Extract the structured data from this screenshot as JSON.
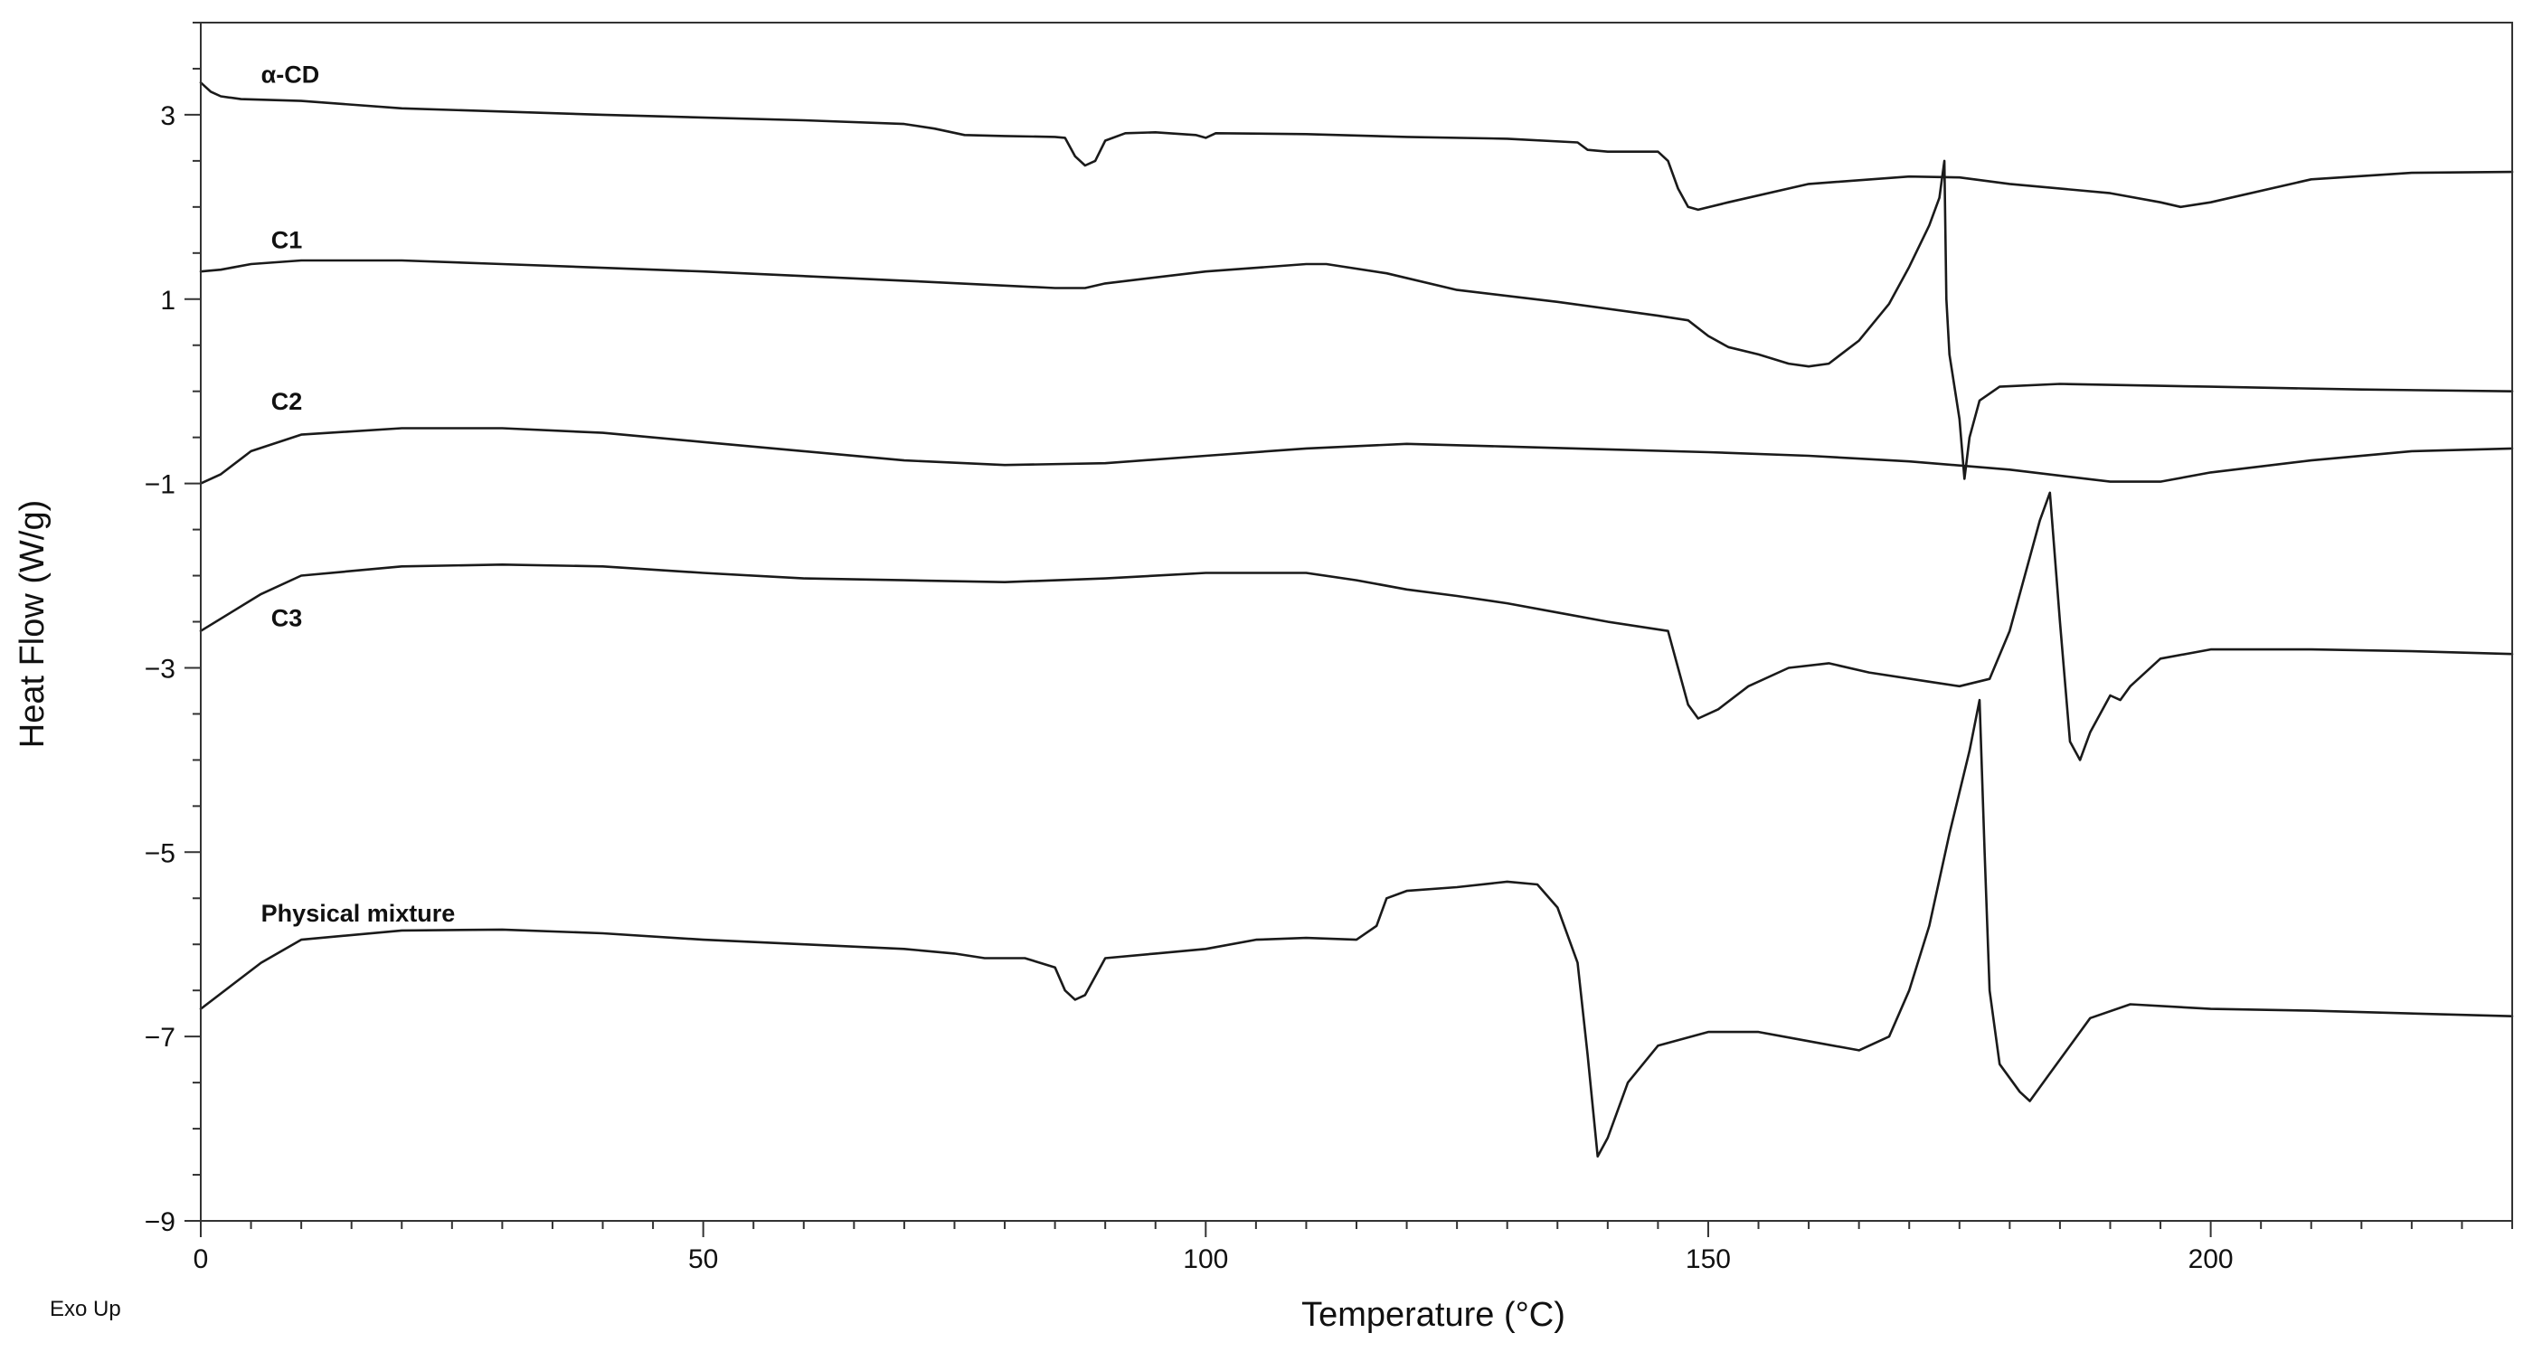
{
  "chart_data": {
    "type": "line",
    "xlabel": "Temperature (°C)",
    "ylabel": "Heat Flow (W/g)",
    "xlim": [
      0,
      230
    ],
    "ylim": [
      -9,
      4
    ],
    "x_major_ticks": [
      0,
      50,
      100,
      150,
      200
    ],
    "y_major_ticks": [
      3,
      1,
      -1,
      -3,
      -5,
      -7,
      -9
    ],
    "x_tick_labels": [
      "0",
      "50",
      "100",
      "150",
      "200"
    ],
    "y_tick_labels": [
      "3",
      "1",
      "−1",
      "−3",
      "−5",
      "−7",
      "−9"
    ],
    "grid": false,
    "legend": "none",
    "annotation": "Exo Up",
    "line_color": "#1a1a1a",
    "series": [
      {
        "name": "α-CD",
        "label_at": [
          6,
          3.35
        ],
        "points": [
          [
            0,
            3.35
          ],
          [
            1,
            3.25
          ],
          [
            2,
            3.2
          ],
          [
            4,
            3.17
          ],
          [
            10,
            3.15
          ],
          [
            20,
            3.07
          ],
          [
            40,
            3.0
          ],
          [
            60,
            2.94
          ],
          [
            70,
            2.9
          ],
          [
            73,
            2.85
          ],
          [
            76,
            2.78
          ],
          [
            80,
            2.77
          ],
          [
            85,
            2.76
          ],
          [
            86,
            2.75
          ],
          [
            87,
            2.55
          ],
          [
            88,
            2.45
          ],
          [
            89,
            2.5
          ],
          [
            90,
            2.72
          ],
          [
            92,
            2.8
          ],
          [
            95,
            2.81
          ],
          [
            99,
            2.78
          ],
          [
            100,
            2.75
          ],
          [
            101,
            2.8
          ],
          [
            110,
            2.79
          ],
          [
            120,
            2.76
          ],
          [
            130,
            2.74
          ],
          [
            137,
            2.7
          ],
          [
            138,
            2.62
          ],
          [
            140,
            2.6
          ],
          [
            145,
            2.6
          ],
          [
            146,
            2.5
          ],
          [
            147,
            2.2
          ],
          [
            148,
            2.0
          ],
          [
            149,
            1.97
          ],
          [
            152,
            2.05
          ],
          [
            160,
            2.25
          ],
          [
            170,
            2.33
          ],
          [
            175,
            2.32
          ],
          [
            180,
            2.25
          ],
          [
            190,
            2.15
          ],
          [
            195,
            2.05
          ],
          [
            197,
            2.0
          ],
          [
            200,
            2.05
          ],
          [
            210,
            2.3
          ],
          [
            220,
            2.37
          ],
          [
            230,
            2.38
          ]
        ]
      },
      {
        "name": "C1",
        "label_at": [
          7,
          1.55
        ],
        "points": [
          [
            0,
            1.3
          ],
          [
            2,
            1.32
          ],
          [
            5,
            1.38
          ],
          [
            10,
            1.42
          ],
          [
            20,
            1.42
          ],
          [
            30,
            1.38
          ],
          [
            50,
            1.3
          ],
          [
            70,
            1.2
          ],
          [
            85,
            1.12
          ],
          [
            88,
            1.12
          ],
          [
            90,
            1.17
          ],
          [
            100,
            1.3
          ],
          [
            110,
            1.38
          ],
          [
            112,
            1.38
          ],
          [
            118,
            1.28
          ],
          [
            125,
            1.1
          ],
          [
            135,
            0.97
          ],
          [
            145,
            0.82
          ],
          [
            148,
            0.77
          ],
          [
            150,
            0.6
          ],
          [
            152,
            0.48
          ],
          [
            155,
            0.4
          ],
          [
            158,
            0.3
          ],
          [
            160,
            0.27
          ],
          [
            162,
            0.3
          ],
          [
            165,
            0.55
          ],
          [
            168,
            0.95
          ],
          [
            170,
            1.35
          ],
          [
            172,
            1.8
          ],
          [
            173,
            2.1
          ],
          [
            173.5,
            2.5
          ],
          [
            173.7,
            1.0
          ],
          [
            174,
            0.4
          ],
          [
            175,
            -0.3
          ],
          [
            175.5,
            -0.95
          ],
          [
            176,
            -0.5
          ],
          [
            177,
            -0.1
          ],
          [
            179,
            0.05
          ],
          [
            185,
            0.08
          ],
          [
            200,
            0.05
          ],
          [
            215,
            0.02
          ],
          [
            230,
            0.0
          ]
        ]
      },
      {
        "name": "C2",
        "label_at": [
          7,
          -0.2
        ],
        "points": [
          [
            0,
            -1.0
          ],
          [
            2,
            -0.9
          ],
          [
            5,
            -0.65
          ],
          [
            10,
            -0.47
          ],
          [
            20,
            -0.4
          ],
          [
            30,
            -0.4
          ],
          [
            40,
            -0.45
          ],
          [
            50,
            -0.55
          ],
          [
            60,
            -0.65
          ],
          [
            70,
            -0.75
          ],
          [
            80,
            -0.8
          ],
          [
            90,
            -0.78
          ],
          [
            100,
            -0.7
          ],
          [
            110,
            -0.62
          ],
          [
            120,
            -0.57
          ],
          [
            130,
            -0.6
          ],
          [
            140,
            -0.63
          ],
          [
            150,
            -0.66
          ],
          [
            160,
            -0.7
          ],
          [
            170,
            -0.76
          ],
          [
            180,
            -0.85
          ],
          [
            190,
            -0.98
          ],
          [
            195,
            -0.98
          ],
          [
            200,
            -0.88
          ],
          [
            210,
            -0.75
          ],
          [
            220,
            -0.65
          ],
          [
            230,
            -0.62
          ]
        ]
      },
      {
        "name": "C3",
        "label_at": [
          7,
          -2.55
        ],
        "points": [
          [
            0,
            -2.6
          ],
          [
            3,
            -2.4
          ],
          [
            6,
            -2.2
          ],
          [
            10,
            -2.0
          ],
          [
            20,
            -1.9
          ],
          [
            30,
            -1.88
          ],
          [
            40,
            -1.9
          ],
          [
            50,
            -1.97
          ],
          [
            60,
            -2.03
          ],
          [
            70,
            -2.05
          ],
          [
            80,
            -2.07
          ],
          [
            90,
            -2.03
          ],
          [
            100,
            -1.97
          ],
          [
            110,
            -1.97
          ],
          [
            115,
            -2.05
          ],
          [
            120,
            -2.15
          ],
          [
            125,
            -2.22
          ],
          [
            130,
            -2.3
          ],
          [
            135,
            -2.4
          ],
          [
            140,
            -2.5
          ],
          [
            146,
            -2.6
          ],
          [
            147,
            -3.0
          ],
          [
            148,
            -3.4
          ],
          [
            149,
            -3.55
          ],
          [
            151,
            -3.45
          ],
          [
            154,
            -3.2
          ],
          [
            158,
            -3.0
          ],
          [
            162,
            -2.95
          ],
          [
            166,
            -3.05
          ],
          [
            172,
            -3.15
          ],
          [
            175,
            -3.2
          ],
          [
            178,
            -3.12
          ],
          [
            180,
            -2.6
          ],
          [
            182,
            -1.8
          ],
          [
            183,
            -1.4
          ],
          [
            184,
            -1.1
          ],
          [
            185,
            -2.5
          ],
          [
            186,
            -3.8
          ],
          [
            187,
            -4.0
          ],
          [
            188,
            -3.7
          ],
          [
            189,
            -3.5
          ],
          [
            190,
            -3.3
          ],
          [
            191,
            -3.35
          ],
          [
            192,
            -3.2
          ],
          [
            195,
            -2.9
          ],
          [
            200,
            -2.8
          ],
          [
            210,
            -2.8
          ],
          [
            220,
            -2.82
          ],
          [
            230,
            -2.85
          ]
        ]
      },
      {
        "name": "Physical mixture",
        "label_at": [
          6,
          -5.75
        ],
        "points": [
          [
            0,
            -6.7
          ],
          [
            3,
            -6.45
          ],
          [
            6,
            -6.2
          ],
          [
            10,
            -5.95
          ],
          [
            20,
            -5.85
          ],
          [
            30,
            -5.84
          ],
          [
            40,
            -5.88
          ],
          [
            50,
            -5.95
          ],
          [
            60,
            -6.0
          ],
          [
            70,
            -6.05
          ],
          [
            75,
            -6.1
          ],
          [
            78,
            -6.15
          ],
          [
            82,
            -6.15
          ],
          [
            85,
            -6.25
          ],
          [
            86,
            -6.5
          ],
          [
            87,
            -6.6
          ],
          [
            88,
            -6.55
          ],
          [
            90,
            -6.15
          ],
          [
            95,
            -6.1
          ],
          [
            100,
            -6.05
          ],
          [
            105,
            -5.95
          ],
          [
            110,
            -5.93
          ],
          [
            115,
            -5.95
          ],
          [
            117,
            -5.8
          ],
          [
            118,
            -5.5
          ],
          [
            120,
            -5.42
          ],
          [
            125,
            -5.38
          ],
          [
            130,
            -5.32
          ],
          [
            133,
            -5.35
          ],
          [
            135,
            -5.6
          ],
          [
            137,
            -6.2
          ],
          [
            138,
            -7.2
          ],
          [
            139,
            -8.3
          ],
          [
            140,
            -8.1
          ],
          [
            142,
            -7.5
          ],
          [
            145,
            -7.1
          ],
          [
            150,
            -6.95
          ],
          [
            155,
            -6.95
          ],
          [
            160,
            -7.05
          ],
          [
            165,
            -7.15
          ],
          [
            168,
            -7.0
          ],
          [
            170,
            -6.5
          ],
          [
            172,
            -5.8
          ],
          [
            174,
            -4.8
          ],
          [
            176,
            -3.9
          ],
          [
            177,
            -3.35
          ],
          [
            177.5,
            -5.0
          ],
          [
            178,
            -6.5
          ],
          [
            179,
            -7.3
          ],
          [
            181,
            -7.6
          ],
          [
            182,
            -7.7
          ],
          [
            184,
            -7.4
          ],
          [
            188,
            -6.8
          ],
          [
            192,
            -6.65
          ],
          [
            200,
            -6.7
          ],
          [
            210,
            -6.72
          ],
          [
            230,
            -6.78
          ]
        ]
      }
    ]
  }
}
